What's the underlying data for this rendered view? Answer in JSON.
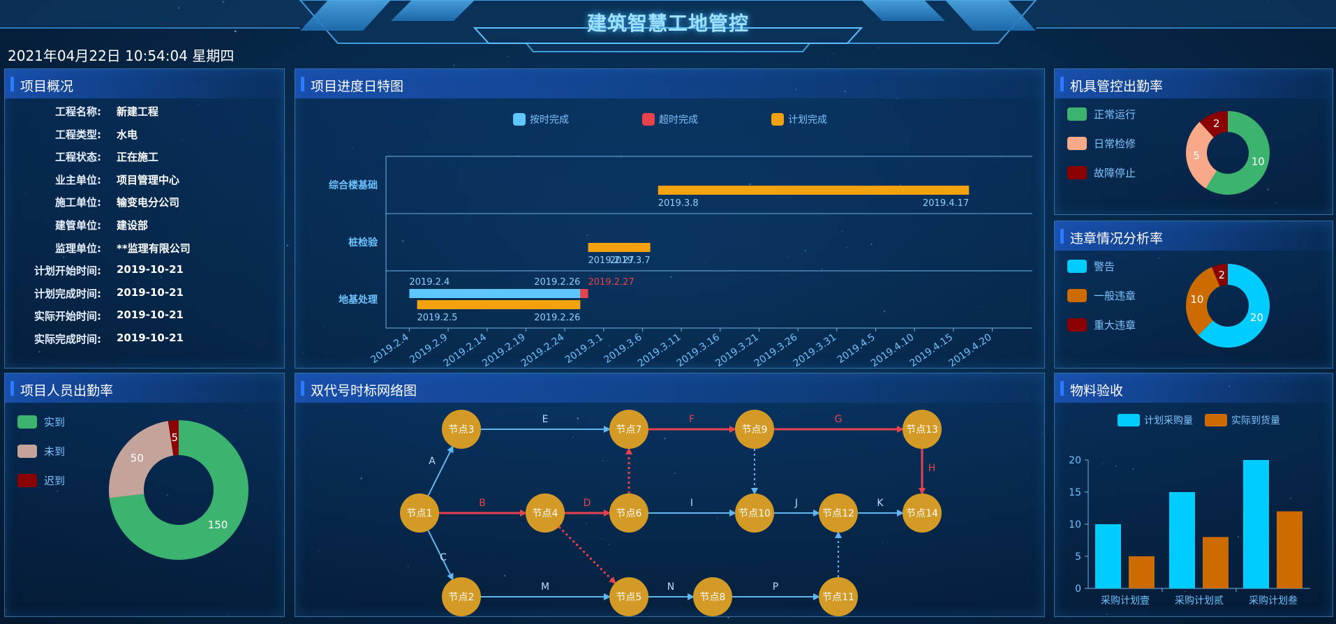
{
  "header": {
    "title": "建筑智慧工地管控",
    "datetime": "2021年04月22日 10:54:04 星期四"
  },
  "panels": {
    "overview": "项目概况",
    "gantt": "项目进度日特图",
    "equipment": "机具管控出勤率",
    "violation": "违章情况分析率",
    "personnel": "项目人员出勤率",
    "network": "双代号时标网络图",
    "material": "物料验收"
  },
  "overview": [
    {
      "key": "工程名称:",
      "value": "新建工程"
    },
    {
      "key": "工程类型:",
      "value": "水电"
    },
    {
      "key": "工程状态:",
      "value": "正在施工"
    },
    {
      "key": "业主单位:",
      "value": "项目管理中心"
    },
    {
      "key": "施工单位:",
      "value": "输变电分公司"
    },
    {
      "key": "建管单位:",
      "value": "建设部"
    },
    {
      "key": "监理单位:",
      "value": "**监理有限公司"
    },
    {
      "key": "计划开始时间:",
      "value": "2019-10-21"
    },
    {
      "key": "计划完成时间:",
      "value": "2019-10-21"
    },
    {
      "key": "实际开始时间:",
      "value": "2019-10-21"
    },
    {
      "key": "实际完成时间:",
      "value": "2019-10-21"
    }
  ],
  "colors": {
    "blue": "#5fc6ff",
    "red": "#e8434d",
    "orange": "#f2a20c",
    "green": "#3cb46f",
    "salmon": "#f7a98a",
    "darkred": "#8b0000",
    "cyan": "#00ccff",
    "brown": "#cc6b00",
    "node": "#d49a26"
  },
  "chart_data": [
    {
      "type": "bar",
      "title": "项目进度日特图",
      "legend": [
        "按时完成",
        "超时完成",
        "计划完成"
      ],
      "categories": [
        "综合楼基础",
        "桩检验",
        "地基处理"
      ],
      "x_ticks": [
        "2019.2.4",
        "2019.2.9",
        "2019.2.14",
        "2019.2.19",
        "2019.2.24",
        "2019.3.1",
        "2019.3.6",
        "2019.3.11",
        "2019.3.16",
        "2019.3.21",
        "2019.3.26",
        "2019.3.31",
        "2019.4.5",
        "2019.4.10",
        "2019.4.15",
        "2019.4.20"
      ],
      "xlim": [
        "2019.2.1",
        "2019.4.23"
      ],
      "bars": [
        {
          "category": "综合楼基础",
          "series": "计划完成",
          "start": "2019.3.8",
          "end": "2019.4.17",
          "start_label": "2019.3.8",
          "end_label": "2019.4.17"
        },
        {
          "category": "桩检验",
          "series": "计划完成",
          "start": "2019.2.27",
          "end": "2019.3.7",
          "start_label": "2019.2.27",
          "end_label": "2019.3.7"
        },
        {
          "category": "地基处理",
          "series": "按时完成",
          "start": "2019.2.4",
          "end": "2019.2.26",
          "start_label": "2019.2.4",
          "end_label": "2019.2.26"
        },
        {
          "category": "地基处理",
          "series": "超时完成",
          "start": "2019.2.26",
          "end": "2019.2.27",
          "start_label": "",
          "end_label": "2019.2.27"
        },
        {
          "category": "地基处理",
          "series": "计划完成",
          "start": "2019.2.5",
          "end": "2019.2.26",
          "start_label": "2019.2.5",
          "end_label": "2019.2.26"
        }
      ]
    },
    {
      "type": "pie",
      "title": "机具管控出勤率",
      "legend": [
        "正常运行",
        "日常检修",
        "故障停止"
      ],
      "values": [
        10,
        5,
        2
      ],
      "colors": [
        "#3cb46f",
        "#f7a98a",
        "#8b0000"
      ]
    },
    {
      "type": "pie",
      "title": "违章情况分析率",
      "legend": [
        "警告",
        "一般违章",
        "重大违章"
      ],
      "values": [
        20,
        10,
        2
      ],
      "colors": [
        "#00ccff",
        "#cc6b00",
        "#8b0000"
      ]
    },
    {
      "type": "pie",
      "title": "项目人员出勤率",
      "legend": [
        "实到",
        "未到",
        "迟到"
      ],
      "values": [
        150,
        50,
        5
      ],
      "colors": [
        "#3cb46f",
        "#c4a49a",
        "#8b0000"
      ]
    },
    {
      "type": "bar",
      "title": "物料验收",
      "categories": [
        "采购计划壹",
        "采购计划贰",
        "采购计划叁"
      ],
      "series": [
        {
          "name": "计划采购量",
          "values": [
            10,
            15,
            20
          ]
        },
        {
          "name": "实际到货量",
          "values": [
            5,
            8,
            12
          ]
        }
      ],
      "y_ticks": [
        "0",
        "5",
        "10",
        "15",
        "20"
      ],
      "ylim": [
        0,
        20
      ]
    }
  ],
  "network": {
    "nodes": [
      {
        "id": "n1",
        "label": "节点1"
      },
      {
        "id": "n2",
        "label": "节点2"
      },
      {
        "id": "n3",
        "label": "节点3"
      },
      {
        "id": "n4",
        "label": "节点4"
      },
      {
        "id": "n5",
        "label": "节点5"
      },
      {
        "id": "n6",
        "label": "节点6"
      },
      {
        "id": "n7",
        "label": "节点7"
      },
      {
        "id": "n8",
        "label": "节点8"
      },
      {
        "id": "n9",
        "label": "节点9"
      },
      {
        "id": "n10",
        "label": "节点10"
      },
      {
        "id": "n11",
        "label": "节点11"
      },
      {
        "id": "n12",
        "label": "节点12"
      },
      {
        "id": "n13",
        "label": "节点13"
      },
      {
        "id": "n14",
        "label": "节点14"
      }
    ],
    "edges": [
      {
        "from": "n1",
        "to": "n3",
        "label": "A",
        "critical": false,
        "dashed": false
      },
      {
        "from": "n1",
        "to": "n4",
        "label": "B",
        "critical": true,
        "dashed": false
      },
      {
        "from": "n1",
        "to": "n2",
        "label": "C",
        "critical": false,
        "dashed": false
      },
      {
        "from": "n4",
        "to": "n6",
        "label": "D",
        "critical": true,
        "dashed": false
      },
      {
        "from": "n3",
        "to": "n7",
        "label": "E",
        "critical": false,
        "dashed": false
      },
      {
        "from": "n7",
        "to": "n9",
        "label": "F",
        "critical": true,
        "dashed": false
      },
      {
        "from": "n9",
        "to": "n13",
        "label": "G",
        "critical": true,
        "dashed": false
      },
      {
        "from": "n13",
        "to": "n14",
        "label": "H",
        "critical": true,
        "dashed": false
      },
      {
        "from": "n6",
        "to": "n10",
        "label": "I",
        "critical": false,
        "dashed": false
      },
      {
        "from": "n10",
        "to": "n12",
        "label": "J",
        "critical": false,
        "dashed": false
      },
      {
        "from": "n12",
        "to": "n14",
        "label": "K",
        "critical": false,
        "dashed": false
      },
      {
        "from": "n2",
        "to": "n5",
        "label": "M",
        "critical": false,
        "dashed": false
      },
      {
        "from": "n5",
        "to": "n8",
        "label": "N",
        "critical": false,
        "dashed": false
      },
      {
        "from": "n8",
        "to": "n11",
        "label": "P",
        "critical": false,
        "dashed": false
      },
      {
        "from": "n6",
        "to": "n7",
        "label": "",
        "critical": true,
        "dashed": true
      },
      {
        "from": "n4",
        "to": "n5",
        "label": "",
        "critical": true,
        "dashed": true
      },
      {
        "from": "n9",
        "to": "n10",
        "label": "",
        "critical": false,
        "dashed": true
      },
      {
        "from": "n11",
        "to": "n12",
        "label": "",
        "critical": false,
        "dashed": true
      }
    ]
  }
}
